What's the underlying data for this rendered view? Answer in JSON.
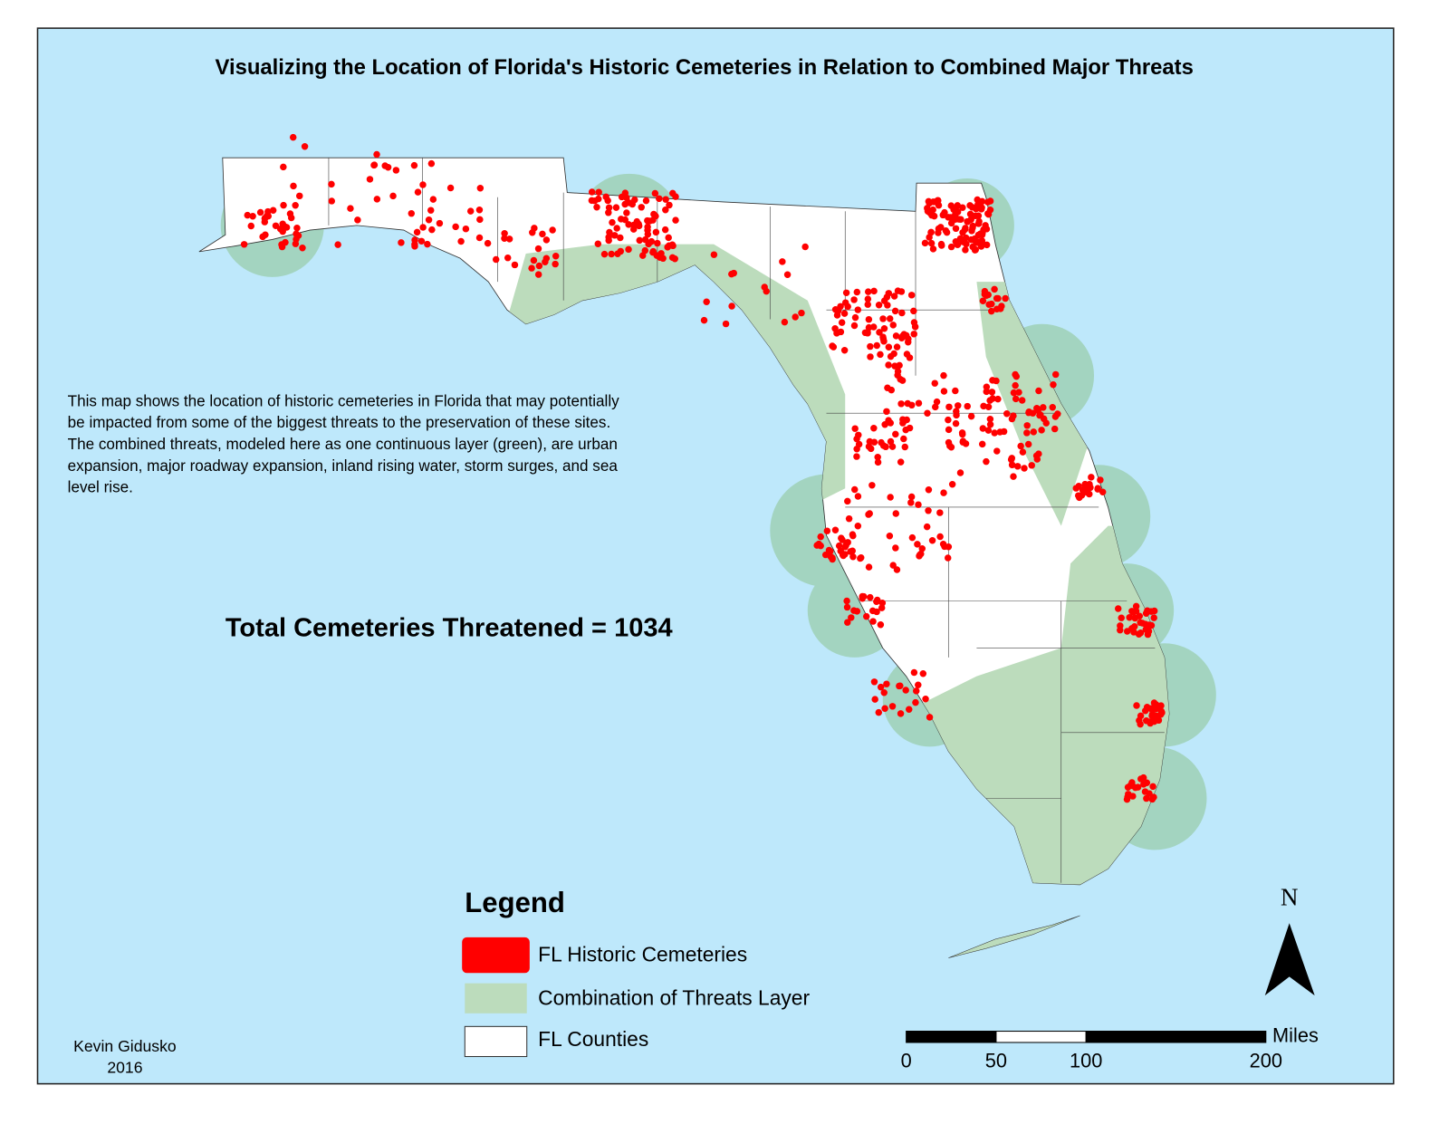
{
  "title": "Visualizing the Location of Florida's Historic Cemeteries in Relation to Combined Major Threats",
  "description": [
    "This map shows the location of historic cemeteries in Florida that may potentially",
    " be impacted from some of the biggest threats to the preservation of these sites.",
    "The combined threats, modeled here as one continuous layer (green), are urban",
    "expansion, major roadway expansion, inland rising water, storm surges, and sea",
    "level rise."
  ],
  "total": "Total Cemeteries Threatened = 1034",
  "legend": {
    "title": "Legend",
    "items": [
      {
        "label": "FL Historic Cemeteries",
        "color": "#ff0000"
      },
      {
        "label": "Combination of Threats Layer",
        "color": "#bcdcbc"
      },
      {
        "label": "FL Counties",
        "color": "#ffffff"
      }
    ]
  },
  "north": "N",
  "scale_bar": {
    "unit": "Miles",
    "ticks": [
      0,
      50,
      100,
      200
    ]
  },
  "author": [
    "Kevin Gidusko",
    "2016"
  ]
}
